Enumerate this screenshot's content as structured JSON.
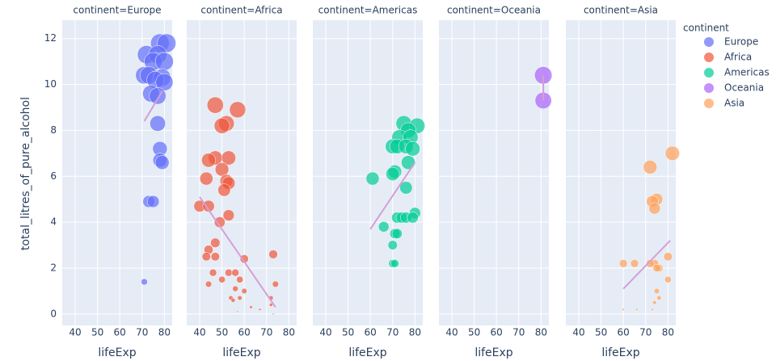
{
  "chart_data": {
    "type": "scatter",
    "xlabel": "lifeExp",
    "ylabel": "total_litres_of_pure_alcohol",
    "legend_title": "continent",
    "xlim": [
      34.2,
      83.5
    ],
    "xticks": [
      40,
      50,
      60,
      70,
      80
    ],
    "ylim": [
      -0.5,
      12.8
    ],
    "yticks": [
      0,
      2,
      4,
      6,
      8,
      10,
      12
    ],
    "grid": true,
    "legend": "right",
    "trendline_color": "#d59fd8",
    "series": [
      {
        "name": "Europe",
        "facet_title": "continent=Europe",
        "color": "#636efa",
        "x": [
          71,
          73,
          75,
          79,
          78,
          78,
          77,
          77,
          74,
          71,
          73,
          76,
          80,
          79,
          72,
          77,
          78,
          81,
          75,
          80
        ],
        "values": [
          1.4,
          4.9,
          4.9,
          6.6,
          6.7,
          7.2,
          8.3,
          9.5,
          9.6,
          10.4,
          10.4,
          10.2,
          10.1,
          10.3,
          11.3,
          11.3,
          11.8,
          11.8,
          11.0,
          11.0
        ],
        "trendline": {
          "x": [
            71,
            79
          ],
          "values": [
            8.4,
            9.7
          ]
        }
      },
      {
        "name": "Africa",
        "facet_title": "continent=Africa",
        "color": "#ef553b",
        "x": [
          40,
          44,
          44,
          43,
          47,
          47,
          50,
          52,
          57,
          50,
          53,
          52,
          53,
          51,
          49,
          53,
          47,
          44,
          43,
          47,
          50,
          44,
          46,
          53,
          56,
          60,
          58,
          56,
          54,
          58,
          60,
          73,
          74,
          72,
          55,
          63,
          67,
          72,
          57,
          73
        ],
        "values": [
          4.7,
          4.7,
          6.7,
          5.9,
          6.8,
          9.1,
          8.2,
          8.3,
          8.9,
          6.3,
          6.8,
          5.8,
          5.7,
          5.4,
          4.0,
          4.3,
          3.1,
          2.8,
          2.5,
          2.5,
          1.5,
          1.3,
          1.8,
          1.8,
          1.8,
          2.4,
          1.5,
          1.1,
          0.7,
          0.7,
          1.0,
          2.6,
          1.3,
          0.7,
          0.6,
          0.3,
          0.2,
          0.4,
          0.1,
          0.0
        ],
        "trendline": {
          "x": [
            40,
            74
          ],
          "values": [
            5.1,
            0.3
          ]
        }
      },
      {
        "name": "Americas",
        "facet_title": "continent=Americas",
        "color": "#00cc96",
        "x": [
          61,
          66,
          70,
          71,
          72,
          70,
          71,
          72,
          74,
          76,
          79,
          80,
          76,
          77,
          70,
          71,
          70,
          72,
          73,
          76,
          78,
          79,
          75,
          77,
          81
        ],
        "values": [
          5.9,
          3.8,
          3.0,
          3.5,
          3.5,
          2.2,
          2.2,
          4.2,
          4.2,
          4.2,
          4.2,
          4.4,
          5.5,
          6.6,
          6.1,
          6.2,
          7.3,
          7.3,
          7.7,
          7.3,
          7.7,
          7.2,
          8.3,
          8.0,
          8.2
        ],
        "trendline": {
          "x": [
            60,
            80
          ],
          "values": [
            3.7,
            6.6
          ]
        }
      },
      {
        "name": "Oceania",
        "facet_title": "continent=Oceania",
        "color": "#ab63fa",
        "x": [
          81,
          81
        ],
        "values": [
          10.4,
          9.3
        ],
        "trendline": {
          "x": [
            81,
            81
          ],
          "values": [
            9.3,
            10.4
          ]
        }
      },
      {
        "name": "Asia",
        "facet_title": "continent=Asia",
        "color": "#ffa15a",
        "x": [
          82,
          72,
          75,
          73,
          74,
          80,
          74,
          76,
          75,
          60,
          65,
          72,
          80,
          75,
          76,
          74,
          60,
          66,
          73
        ],
        "values": [
          7.0,
          6.4,
          5.0,
          4.9,
          4.6,
          2.5,
          2.2,
          2.0,
          2.0,
          2.2,
          2.2,
          2.2,
          1.5,
          1.0,
          0.7,
          0.5,
          0.2,
          0.2,
          0.2
        ],
        "trendline": {
          "x": [
            60,
            81
          ],
          "values": [
            1.1,
            3.2
          ]
        }
      }
    ]
  }
}
